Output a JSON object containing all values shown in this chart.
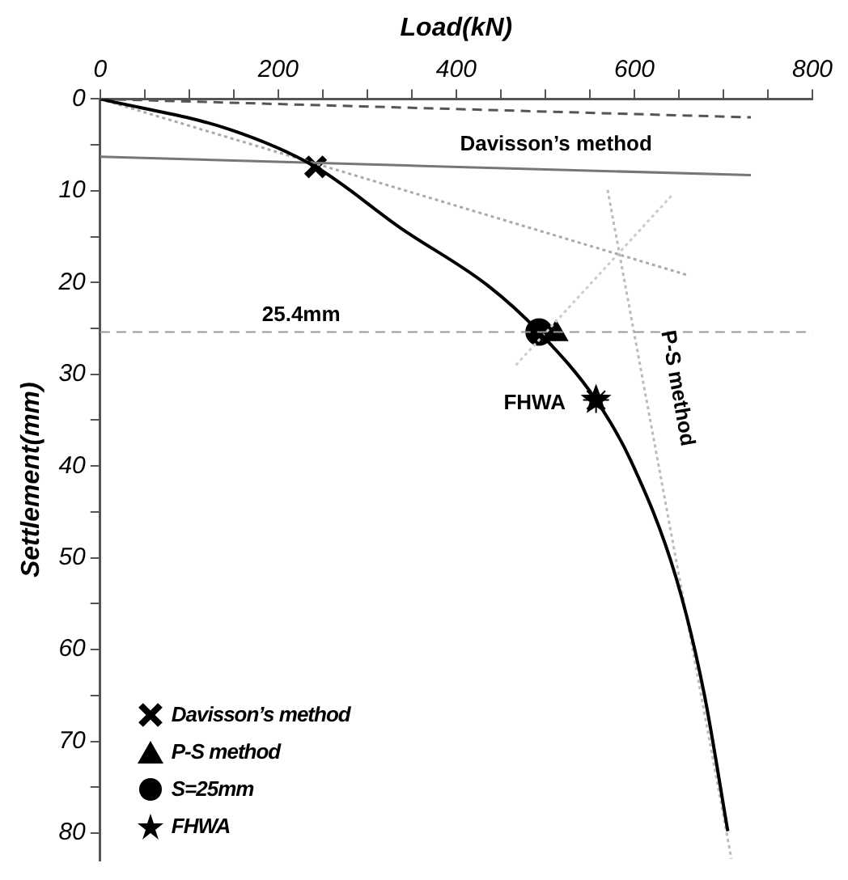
{
  "chart_data": {
    "type": "line",
    "xlabel": "Load(kN)",
    "ylabel": "Settlement(mm)",
    "xlim": [
      0,
      800
    ],
    "ylim": [
      83,
      0
    ],
    "xticks": [
      0,
      {
        "value": 50,
        "label": null
      },
      {
        "value": 100,
        "label": null
      },
      {
        "value": 150,
        "label": null
      },
      200,
      {
        "value": 250,
        "label": null
      },
      {
        "value": 300,
        "label": null
      },
      {
        "value": 350,
        "label": null
      },
      400,
      {
        "value": 450,
        "label": null
      },
      {
        "value": 500,
        "label": null
      },
      {
        "value": 550,
        "label": null
      },
      600,
      {
        "value": 650,
        "label": null
      },
      {
        "value": 700,
        "label": null
      },
      {
        "value": 750,
        "label": null
      },
      800
    ],
    "yticks": [
      0,
      {
        "value": 5,
        "label": null
      },
      10,
      {
        "value": 15,
        "label": null
      },
      20,
      {
        "value": 25,
        "label": null
      },
      30,
      {
        "value": 35,
        "label": null
      },
      40,
      {
        "value": 45,
        "label": null
      },
      50,
      {
        "value": 55,
        "label": null
      },
      60,
      {
        "value": 65,
        "label": null
      },
      70,
      {
        "value": 75,
        "label": null
      },
      80
    ],
    "grid": false,
    "legend": "bottom left",
    "marker": "none",
    "series": [
      {
        "color": "#000000",
        "line_style": "solid",
        "x": [
          0,
          145,
          242,
          338,
          435,
          493,
          557,
          596,
          647,
          678,
          705
        ],
        "values": [
          0,
          3.3,
          7.4,
          14.1,
          20.3,
          25.4,
          32.8,
          39.4,
          52.2,
          64.6,
          79.8
        ]
      },
      {
        "color": "#555555",
        "line_style": "dashed",
        "x": [
          0,
          731
        ],
        "values": [
          0,
          2.0
        ]
      },
      {
        "color": "#777777",
        "line_style": "solid",
        "x": [
          0,
          731
        ],
        "values": [
          6.3,
          8.3
        ]
      },
      {
        "color": "#aaaaaa",
        "line_style": "dotted",
        "x": [
          0,
          660
        ],
        "values": [
          0,
          19.2
        ]
      },
      {
        "color": "#bbbbbb",
        "line_style": "dotted",
        "x": [
          570,
          709
        ],
        "values": [
          9.9,
          82.8
        ]
      },
      {
        "color": "#cccccc",
        "line_style": "dotted",
        "x": [
          467,
          644
        ],
        "values": [
          29.0,
          10.3
        ]
      },
      {
        "type": "scatter",
        "name": "Davisson’s method",
        "marker": "cross",
        "color": "#000000",
        "x": [
          242
        ],
        "values": [
          7.4
        ]
      },
      {
        "type": "scatter",
        "name": "P-S method",
        "marker": "triangle",
        "color": "#000000",
        "x": [
          512
        ],
        "values": [
          25.6
        ]
      },
      {
        "type": "scatter",
        "name": "S=25mm",
        "marker": "circle",
        "color": "#000000",
        "x": [
          493
        ],
        "values": [
          25.4
        ]
      },
      {
        "type": "scatter",
        "name": "FHWA",
        "marker": "star",
        "color": "#000000",
        "x": [
          557
        ],
        "values": [
          32.8
        ]
      }
    ],
    "ref_lines": [
      {
        "axis": "y",
        "value": 25.4,
        "label": "25.4mm",
        "color": "#999999",
        "line_style": "dashed"
      }
    ],
    "annotations": [
      "Davisson’s method",
      "FHWA",
      "P-S method"
    ]
  }
}
